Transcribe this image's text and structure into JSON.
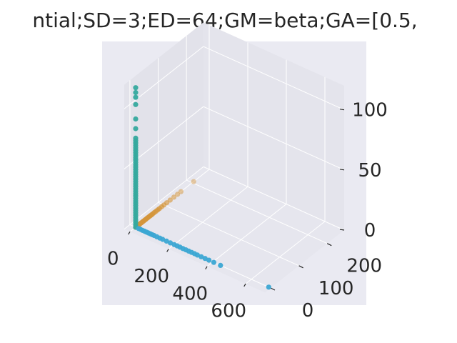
{
  "chart_data": {
    "type": "scatter",
    "projection": "3d",
    "title": "ntial;SD=3;ED=64;GM=beta;GA=[0.5,",
    "xlabel": "",
    "ylabel": "",
    "zlabel": "",
    "xlim": [
      -30,
      700
    ],
    "ylim": [
      -20,
      260
    ],
    "zlim": [
      0,
      120
    ],
    "x_ticks": [
      "0",
      "200",
      "400",
      "600"
    ],
    "y_ticks": [
      "0",
      "100",
      "200"
    ],
    "z_ticks": [
      "0",
      "50",
      "100"
    ],
    "grid": true,
    "legend": "none",
    "colors": {
      "pane": "#EAEAF2",
      "grid": "#FFFFFF",
      "text": "#262626",
      "series_x": "#3BA7D3",
      "series_y": "#D4953A",
      "series_z": "#35A99E"
    },
    "series": [
      {
        "color": "#3BA7D3",
        "points": [
          [
            0,
            0,
            0
          ],
          [
            15,
            0,
            0
          ],
          [
            25,
            0,
            0
          ],
          [
            35,
            0,
            0
          ],
          [
            45,
            0,
            0
          ],
          [
            55,
            0,
            0
          ],
          [
            65,
            0,
            0
          ],
          [
            75,
            0,
            0
          ],
          [
            85,
            0,
            0
          ],
          [
            95,
            0,
            0
          ],
          [
            110,
            0,
            0
          ],
          [
            125,
            0,
            0
          ],
          [
            140,
            0,
            0
          ],
          [
            160,
            0,
            0
          ],
          [
            180,
            0,
            0
          ],
          [
            200,
            0,
            0
          ],
          [
            215,
            0,
            0
          ],
          [
            230,
            0,
            0
          ],
          [
            245,
            0,
            0
          ],
          [
            260,
            0,
            0
          ],
          [
            275,
            0,
            0
          ],
          [
            290,
            0,
            0
          ],
          [
            305,
            0,
            0
          ],
          [
            320,
            0,
            0
          ],
          [
            340,
            0,
            0
          ],
          [
            360,
            0,
            0
          ],
          [
            380,
            0,
            0
          ],
          [
            405,
            0,
            0
          ],
          [
            440,
            0,
            0
          ],
          [
            690,
            0,
            0
          ]
        ]
      },
      {
        "color": "#D4953A",
        "points": [
          [
            0,
            0,
            0
          ],
          [
            0,
            4,
            0
          ],
          [
            0,
            8,
            0
          ],
          [
            0,
            12,
            0
          ],
          [
            0,
            16,
            0
          ],
          [
            0,
            20,
            0
          ],
          [
            0,
            24,
            0
          ],
          [
            0,
            28,
            0
          ],
          [
            0,
            32,
            0
          ],
          [
            0,
            36,
            0
          ],
          [
            0,
            40,
            0
          ],
          [
            0,
            44,
            0
          ],
          [
            0,
            48,
            0
          ],
          [
            0,
            52,
            0
          ],
          [
            0,
            56,
            0
          ],
          [
            0,
            60,
            0
          ],
          [
            0,
            66,
            0
          ],
          [
            0,
            72,
            0
          ],
          [
            0,
            78,
            0
          ],
          [
            0,
            84,
            0
          ],
          [
            0,
            92,
            0
          ],
          [
            0,
            100,
            0
          ],
          [
            0,
            110,
            0
          ],
          [
            0,
            122,
            0
          ],
          [
            0,
            135,
            0
          ],
          [
            0,
            148,
            0
          ],
          [
            0,
            160,
            0
          ],
          [
            0,
            205,
            0
          ]
        ]
      },
      {
        "color": "#35A99E",
        "points": [
          [
            0,
            0,
            0
          ],
          [
            0,
            0,
            2
          ],
          [
            0,
            0,
            4
          ],
          [
            0,
            0,
            6
          ],
          [
            0,
            0,
            8
          ],
          [
            0,
            0,
            10
          ],
          [
            0,
            0,
            12
          ],
          [
            0,
            0,
            14
          ],
          [
            0,
            0,
            16
          ],
          [
            0,
            0,
            18
          ],
          [
            0,
            0,
            20
          ],
          [
            0,
            0,
            22
          ],
          [
            0,
            0,
            24
          ],
          [
            0,
            0,
            26
          ],
          [
            0,
            0,
            28
          ],
          [
            0,
            0,
            30
          ],
          [
            0,
            0,
            32
          ],
          [
            0,
            0,
            34
          ],
          [
            0,
            0,
            36
          ],
          [
            0,
            0,
            38
          ],
          [
            0,
            0,
            40
          ],
          [
            0,
            0,
            42
          ],
          [
            0,
            0,
            44
          ],
          [
            0,
            0,
            46
          ],
          [
            0,
            0,
            48
          ],
          [
            0,
            0,
            50
          ],
          [
            0,
            0,
            52
          ],
          [
            0,
            0,
            54
          ],
          [
            0,
            0,
            56
          ],
          [
            0,
            0,
            58
          ],
          [
            0,
            0,
            60
          ],
          [
            0,
            0,
            62
          ],
          [
            0,
            0,
            64
          ],
          [
            0,
            0,
            66
          ],
          [
            0,
            0,
            68
          ],
          [
            0,
            0,
            70
          ],
          [
            0,
            0,
            72
          ],
          [
            0,
            0,
            74
          ],
          [
            0,
            0,
            82
          ],
          [
            0,
            0,
            90
          ],
          [
            0,
            0,
            102
          ],
          [
            0,
            0,
            108
          ],
          [
            0,
            0,
            112
          ],
          [
            0,
            0,
            116
          ]
        ]
      }
    ]
  }
}
